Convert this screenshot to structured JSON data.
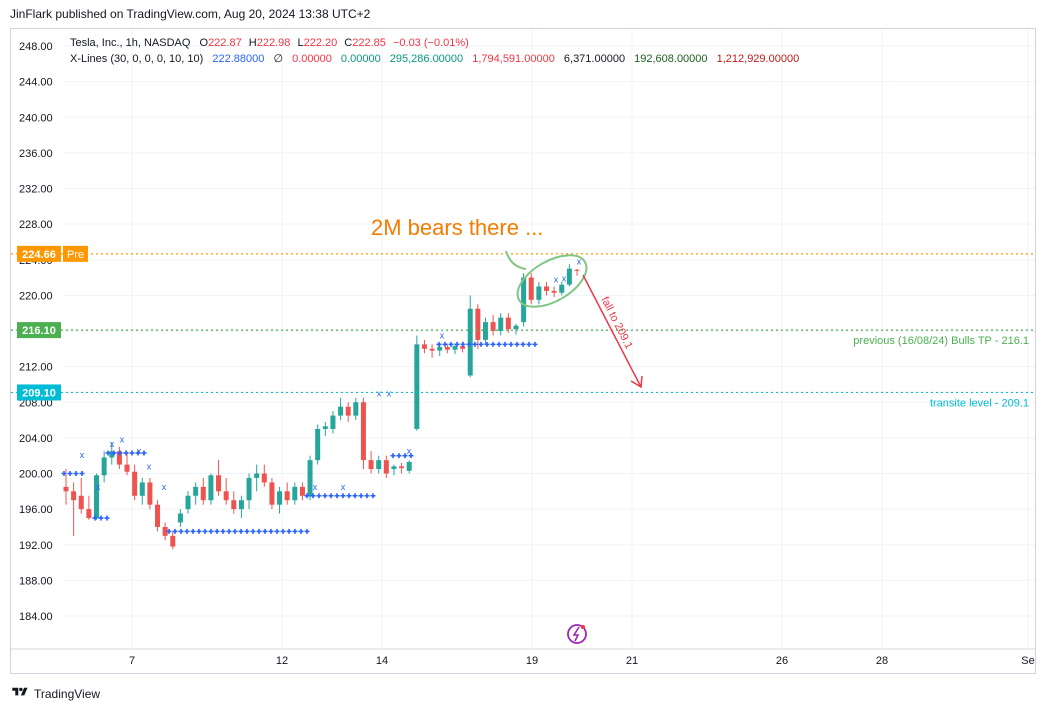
{
  "header": {
    "published": "JinFlark published on TradingView.com, Aug 20, 2024 13:38 UTC+2"
  },
  "legend": {
    "symbol": "Tesla, Inc., 1h, NASDAQ",
    "o_label": "O",
    "o_value": "222.87",
    "h_label": "H",
    "h_value": "222.98",
    "l_label": "L",
    "l_value": "222.20",
    "c_label": "C",
    "c_value": "222.85",
    "change": "−0.03 (−0.01%)",
    "indicator_name": "X-Lines (30, 0, 0, 0, 10, 10)",
    "ind_v1": "222.88000",
    "ind_v2": "∅",
    "ind_v3": "0.00000",
    "ind_v4": "0.00000",
    "ind_v5": "295,286.00000",
    "ind_v6": "1,794,591.00000",
    "ind_v7": "6,371.00000",
    "ind_v8": "192,608.00000",
    "ind_v9": "1,212,929.00000"
  },
  "footer": {
    "brand": "TradingView"
  },
  "colors": {
    "up": "#26a69a",
    "down": "#ef5350",
    "pre": "#ff9800",
    "level_green": "#4caf50",
    "level_cyan": "#00bcd4",
    "xline_blue": "#2962ff",
    "annotation_orange": "#f57c00",
    "arrow_red": "#f23645"
  },
  "chart_data": {
    "type": "candlestick",
    "symbol": "TSLA",
    "timeframe": "1h",
    "ylim": [
      180,
      249
    ],
    "y_ticks": [
      "248.00",
      "244.00",
      "240.00",
      "236.00",
      "232.00",
      "228.00",
      "224.00",
      "220.00",
      "216.00",
      "212.00",
      "208.00",
      "204.00",
      "200.00",
      "196.00",
      "192.00",
      "188.00",
      "184.00"
    ],
    "x_ticks": [
      {
        "label": "7",
        "date": "2024-08-07"
      },
      {
        "label": "12",
        "date": "2024-08-12"
      },
      {
        "label": "14",
        "date": "2024-08-14"
      },
      {
        "label": "19",
        "date": "2024-08-19"
      },
      {
        "label": "21",
        "date": "2024-08-21"
      },
      {
        "label": "26",
        "date": "2024-08-26"
      },
      {
        "label": "28",
        "date": "2024-08-28"
      },
      {
        "label": "Se",
        "date": "2024-09-01"
      }
    ],
    "candles": [
      {
        "o": 198.5,
        "h": 200.5,
        "l": 196.5,
        "c": 198.0
      },
      {
        "o": 198.0,
        "h": 199.0,
        "l": 193.0,
        "c": 197.0
      },
      {
        "o": 197.5,
        "h": 199.5,
        "l": 195.5,
        "c": 196.0
      },
      {
        "o": 196.0,
        "h": 197.5,
        "l": 194.8,
        "c": 195.0
      },
      {
        "o": 195.0,
        "h": 200.0,
        "l": 194.8,
        "c": 199.8
      },
      {
        "o": 199.8,
        "h": 202.5,
        "l": 199.0,
        "c": 201.8
      },
      {
        "o": 201.8,
        "h": 203.5,
        "l": 201.0,
        "c": 202.5
      },
      {
        "o": 202.5,
        "h": 203.0,
        "l": 200.5,
        "c": 201.0
      },
      {
        "o": 201.0,
        "h": 202.5,
        "l": 199.8,
        "c": 200.2
      },
      {
        "o": 200.2,
        "h": 201.0,
        "l": 197.0,
        "c": 197.5
      },
      {
        "o": 197.5,
        "h": 199.5,
        "l": 196.5,
        "c": 199.0
      },
      {
        "o": 199.0,
        "h": 199.5,
        "l": 196.0,
        "c": 196.5
      },
      {
        "o": 196.5,
        "h": 197.0,
        "l": 193.5,
        "c": 194.0
      },
      {
        "o": 194.0,
        "h": 194.5,
        "l": 192.5,
        "c": 193.0
      },
      {
        "o": 193.0,
        "h": 193.5,
        "l": 191.5,
        "c": 191.8
      },
      {
        "o": 194.5,
        "h": 196.0,
        "l": 194.0,
        "c": 195.5
      },
      {
        "o": 196.0,
        "h": 198.0,
        "l": 195.5,
        "c": 197.5
      },
      {
        "o": 197.5,
        "h": 199.0,
        "l": 196.5,
        "c": 198.5
      },
      {
        "o": 198.5,
        "h": 199.5,
        "l": 196.5,
        "c": 197.0
      },
      {
        "o": 197.0,
        "h": 200.0,
        "l": 196.5,
        "c": 199.8
      },
      {
        "o": 199.8,
        "h": 201.5,
        "l": 197.5,
        "c": 198.0
      },
      {
        "o": 198.0,
        "h": 199.5,
        "l": 196.5,
        "c": 197.0
      },
      {
        "o": 197.0,
        "h": 198.0,
        "l": 195.5,
        "c": 196.0
      },
      {
        "o": 196.0,
        "h": 197.5,
        "l": 195.0,
        "c": 197.0
      },
      {
        "o": 197.0,
        "h": 200.0,
        "l": 196.0,
        "c": 199.5
      },
      {
        "o": 199.5,
        "h": 201.0,
        "l": 198.0,
        "c": 200.0
      },
      {
        "o": 200.0,
        "h": 201.0,
        "l": 198.5,
        "c": 199.0
      },
      {
        "o": 199.0,
        "h": 199.5,
        "l": 196.0,
        "c": 196.5
      },
      {
        "o": 196.5,
        "h": 198.5,
        "l": 195.5,
        "c": 198.0
      },
      {
        "o": 198.0,
        "h": 199.0,
        "l": 196.5,
        "c": 197.0
      },
      {
        "o": 197.0,
        "h": 199.0,
        "l": 196.5,
        "c": 198.5
      },
      {
        "o": 198.5,
        "h": 199.0,
        "l": 197.0,
        "c": 197.5
      },
      {
        "o": 197.5,
        "h": 202.0,
        "l": 197.0,
        "c": 201.5
      },
      {
        "o": 201.5,
        "h": 205.5,
        "l": 201.0,
        "c": 205.0
      },
      {
        "o": 205.0,
        "h": 205.8,
        "l": 204.2,
        "c": 205.3
      },
      {
        "o": 205.0,
        "h": 207.0,
        "l": 204.5,
        "c": 206.5
      },
      {
        "o": 206.5,
        "h": 208.5,
        "l": 206.0,
        "c": 207.5
      },
      {
        "o": 207.5,
        "h": 208.0,
        "l": 205.8,
        "c": 206.5
      },
      {
        "o": 206.5,
        "h": 208.5,
        "l": 206.0,
        "c": 208.0
      },
      {
        "o": 208.0,
        "h": 208.5,
        "l": 200.5,
        "c": 201.5
      },
      {
        "o": 201.5,
        "h": 202.5,
        "l": 200.0,
        "c": 200.5
      },
      {
        "o": 200.5,
        "h": 202.0,
        "l": 200.0,
        "c": 201.5
      },
      {
        "o": 201.5,
        "h": 202.0,
        "l": 199.5,
        "c": 200.0
      },
      {
        "o": 200.5,
        "h": 201.0,
        "l": 199.8,
        "c": 200.8
      },
      {
        "o": 200.8,
        "h": 201.2,
        "l": 200.0,
        "c": 200.6
      },
      {
        "o": 200.3,
        "h": 201.5,
        "l": 200.0,
        "c": 201.3
      },
      {
        "o": 205.0,
        "h": 215.5,
        "l": 204.8,
        "c": 214.5
      },
      {
        "o": 214.5,
        "h": 215.0,
        "l": 213.5,
        "c": 214.0
      },
      {
        "o": 214.0,
        "h": 214.5,
        "l": 213.0,
        "c": 213.8
      },
      {
        "o": 213.8,
        "h": 214.5,
        "l": 213.2,
        "c": 214.2
      },
      {
        "o": 214.2,
        "h": 214.6,
        "l": 213.5,
        "c": 213.9
      },
      {
        "o": 213.9,
        "h": 214.6,
        "l": 213.4,
        "c": 214.3
      },
      {
        "o": 214.3,
        "h": 214.8,
        "l": 213.6,
        "c": 214.0
      },
      {
        "o": 211.0,
        "h": 220.0,
        "l": 210.8,
        "c": 218.5
      },
      {
        "o": 218.5,
        "h": 219.0,
        "l": 214.0,
        "c": 215.0
      },
      {
        "o": 215.0,
        "h": 217.5,
        "l": 214.5,
        "c": 217.0
      },
      {
        "o": 217.0,
        "h": 217.8,
        "l": 215.5,
        "c": 216.0
      },
      {
        "o": 216.0,
        "h": 218.0,
        "l": 215.5,
        "c": 217.5
      },
      {
        "o": 217.5,
        "h": 218.0,
        "l": 215.8,
        "c": 216.2
      },
      {
        "o": 216.2,
        "h": 216.8,
        "l": 215.6,
        "c": 216.6
      },
      {
        "o": 217.0,
        "h": 222.5,
        "l": 216.5,
        "c": 222.0
      },
      {
        "o": 222.0,
        "h": 222.5,
        "l": 219.0,
        "c": 219.5
      },
      {
        "o": 219.5,
        "h": 221.5,
        "l": 219.0,
        "c": 221.0
      },
      {
        "o": 221.0,
        "h": 221.5,
        "l": 220.0,
        "c": 220.5
      },
      {
        "o": 220.5,
        "h": 221.0,
        "l": 219.8,
        "c": 220.3
      },
      {
        "o": 220.3,
        "h": 221.5,
        "l": 220.0,
        "c": 221.2
      },
      {
        "o": 221.2,
        "h": 223.5,
        "l": 221.0,
        "c": 223.0
      },
      {
        "o": 222.87,
        "h": 222.98,
        "l": 222.2,
        "c": 222.85
      }
    ],
    "levels": [
      {
        "value": 224.66,
        "label": "224.66",
        "tag": "Pre",
        "style": "dotted",
        "color": "#ff9800"
      },
      {
        "value": 216.1,
        "label": "216.10",
        "text": "previous (16/08/24) Bulls TP - 216.1",
        "style": "dotted",
        "color": "#4caf50"
      },
      {
        "value": 209.1,
        "label": "209.10",
        "text": "transite level - 209.1",
        "style": "dotted",
        "color": "#00bcd4"
      }
    ],
    "annotations": {
      "main_text": "2M bears there ...",
      "arrow_text": "fall to 209.1"
    },
    "grid": true
  }
}
